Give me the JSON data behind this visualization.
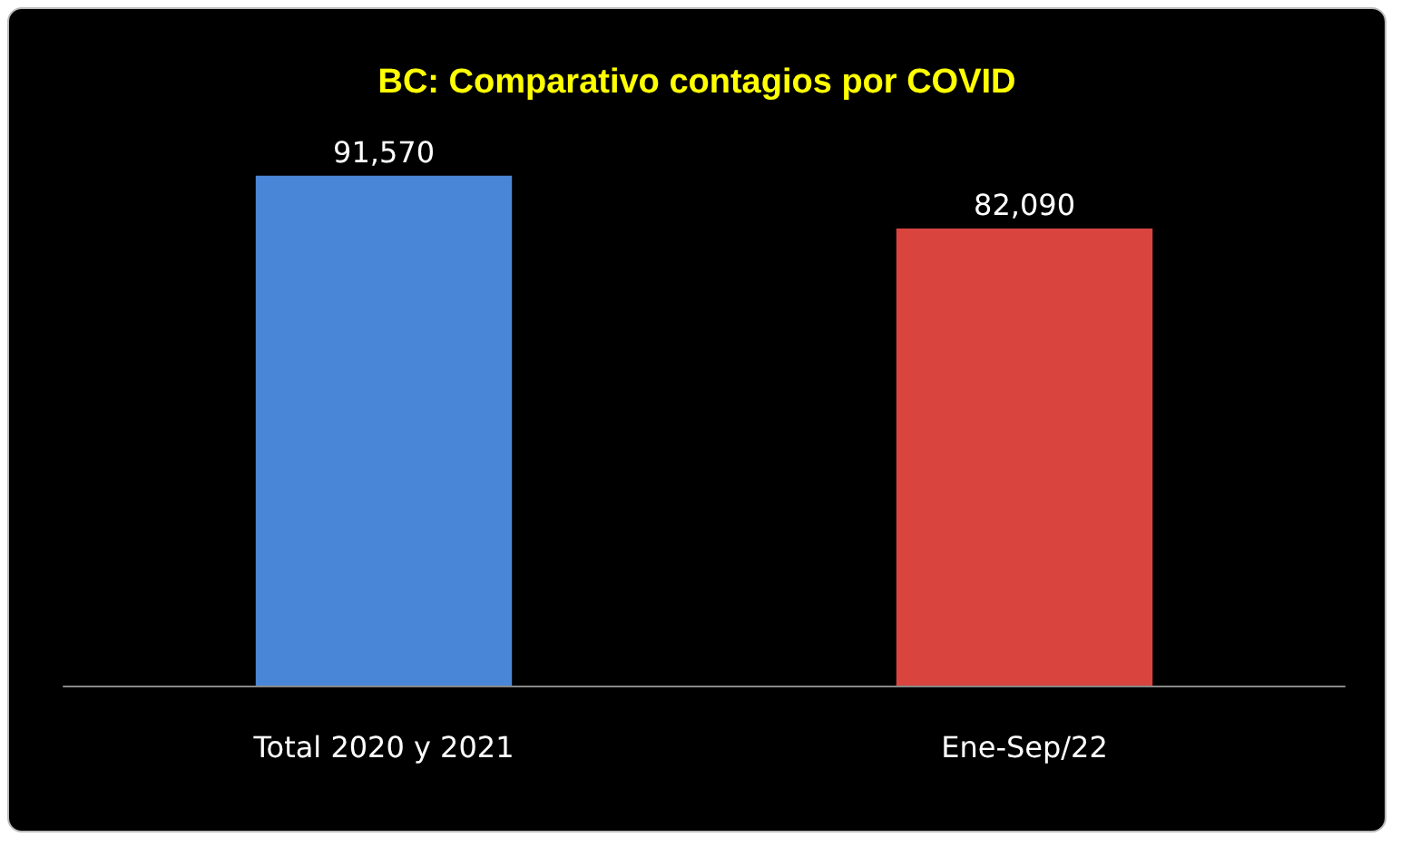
{
  "chart_data": {
    "type": "bar",
    "title": "BC: Comparativo contagios por COVID",
    "categories": [
      "Total 2020 y 2021",
      "Ene-Sep/22"
    ],
    "values": [
      91570,
      82090
    ],
    "value_labels": [
      "91,570",
      "82,090"
    ],
    "colors": [
      "#4a86d8",
      "#d9443f"
    ]
  }
}
